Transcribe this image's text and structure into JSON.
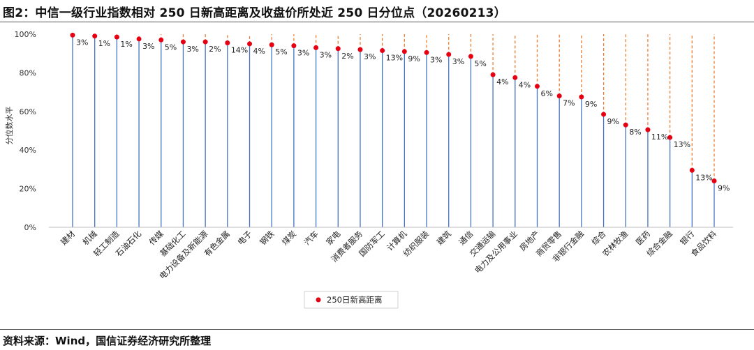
{
  "header": {
    "title": "图2：中信一级行业指数相对 250 日新高距离及收盘价所处近 250 日分位点（20260213）"
  },
  "footer": {
    "source": "资料来源：Wind，国信证券经济研究所整理"
  },
  "chart_data": {
    "type": "scatter",
    "title": "图2：中信一级行业指数相对 250 日新高距离及收盘价所处近 250 日分位点（20260213）",
    "ylabel": "分位数水平",
    "ylim": [
      0,
      100
    ],
    "yticks": [
      0,
      20,
      40,
      60,
      80,
      100
    ],
    "ytick_labels": [
      "0%",
      "20%",
      "40%",
      "60%",
      "80%",
      "100%"
    ],
    "grid": false,
    "legend_position": "bottom",
    "categories": [
      "建材",
      "机械",
      "轻工制造",
      "石油石化",
      "传媒",
      "基础化工",
      "电力设备及新能源",
      "有色金属",
      "电子",
      "钢铁",
      "煤炭",
      "汽车",
      "家电",
      "消费者服务",
      "国防军工",
      "计算机",
      "纺织服装",
      "建筑",
      "通信",
      "交通运输",
      "电力及公用事业",
      "房地产",
      "商贸零售",
      "非银行金融",
      "综合",
      "农林牧渔",
      "医药",
      "综合金融",
      "银行",
      "食品饮料"
    ],
    "series": [
      {
        "name": "250日新高距离",
        "color": "#e60012",
        "values": [
          99.5,
          99,
          98.5,
          97.5,
          97,
          96,
          96,
          95.5,
          95,
          94.5,
          94,
          93,
          92.5,
          92,
          91.5,
          91,
          90.5,
          89.5,
          88.5,
          79,
          77.5,
          73,
          68,
          67.5,
          58.5,
          53,
          50.5,
          46.5,
          29.5,
          24
        ],
        "labels": [
          "3%",
          "1%",
          "1%",
          "3%",
          "5%",
          "3%",
          "2%",
          "14%",
          "4%",
          "5%",
          "3%",
          "3%",
          "2%",
          "3%",
          "13%",
          "9%",
          "3%",
          "3%",
          "5%",
          "4%",
          "4%",
          "6%",
          "7%",
          "9%",
          "9%",
          "8%",
          "11%",
          "13%",
          "13%",
          "9%"
        ]
      }
    ],
    "colors": {
      "stem": "#4472c4",
      "gap": "#ed7d31",
      "axis": "#bfbfbf"
    }
  }
}
